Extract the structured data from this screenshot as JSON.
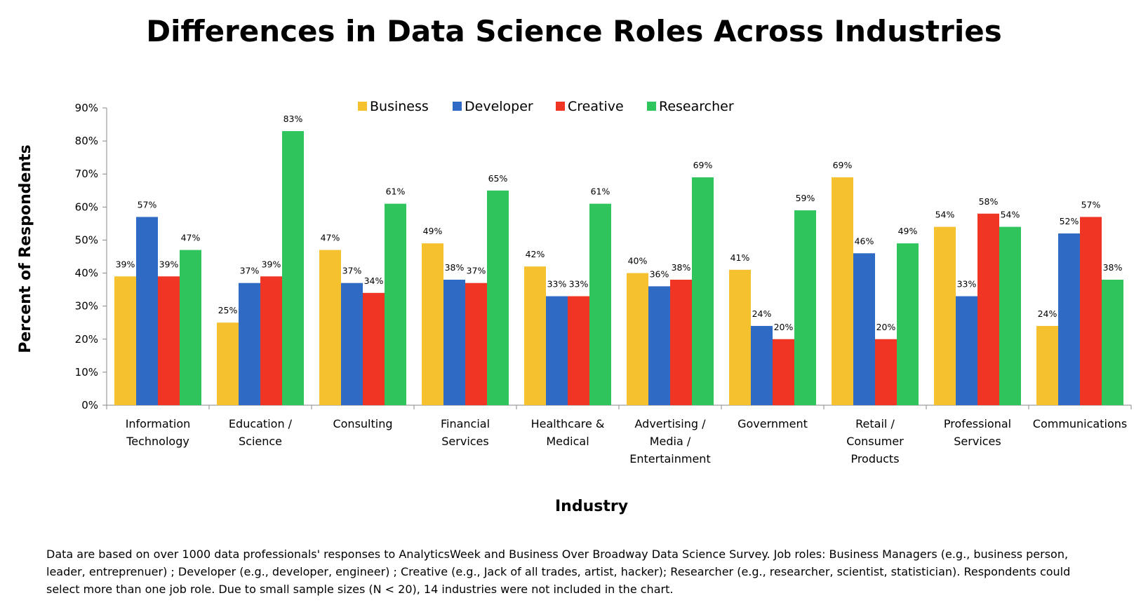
{
  "chart_data": {
    "type": "bar",
    "title": "Differences in Data Science Roles Across Industries",
    "xlabel": "Industry",
    "ylabel": "Percent of Respondents",
    "ylim": [
      0,
      90
    ],
    "yticks": [
      "0%",
      "10%",
      "20%",
      "30%",
      "40%",
      "50%",
      "60%",
      "70%",
      "80%",
      "90%"
    ],
    "legend_position": "top",
    "categories": [
      [
        "Information",
        "Technology"
      ],
      [
        "Education /",
        "Science"
      ],
      [
        "Consulting"
      ],
      [
        "Financial",
        "Services"
      ],
      [
        "Healthcare &",
        "Medical"
      ],
      [
        "Advertising /",
        "Media /",
        "Entertainment"
      ],
      [
        "Government"
      ],
      [
        "Retail /",
        "Consumer",
        "Products"
      ],
      [
        "Professional",
        "Services"
      ],
      [
        "Communications"
      ]
    ],
    "series": [
      {
        "name": "Business",
        "color": "#F6C12E",
        "values": [
          39,
          25,
          47,
          49,
          42,
          40,
          41,
          69,
          54,
          24
        ],
        "labels": [
          "39%",
          "25%",
          "47%",
          "49%",
          "42%",
          "40%",
          "41%",
          "69%",
          "54%",
          "24%"
        ]
      },
      {
        "name": "Developer",
        "color": "#2F6BC4",
        "values": [
          57,
          37,
          37,
          38,
          33,
          36,
          24,
          46,
          33,
          52
        ],
        "labels": [
          "57%",
          "37%",
          "37%",
          "38%",
          "33%",
          "36%",
          "24%",
          "46%",
          "33%",
          "52%"
        ]
      },
      {
        "name": "Creative",
        "color": "#F03524",
        "values": [
          39,
          39,
          34,
          37,
          33,
          38,
          20,
          20,
          58,
          57
        ],
        "labels": [
          "39%",
          "39%",
          "34%",
          "37%",
          "33%",
          "38%",
          "20%",
          "20%",
          "58%",
          "57%"
        ]
      },
      {
        "name": "Researcher",
        "color": "#2FC45C",
        "values": [
          47,
          83,
          61,
          65,
          61,
          69,
          59,
          49,
          54,
          38
        ],
        "labels": [
          "47%",
          "83%",
          "61%",
          "65%",
          "61%",
          "69%",
          "59%",
          "49%",
          "54%",
          "38%"
        ]
      }
    ]
  },
  "footnote": "Data are based on over 1000 data professionals' responses to AnalyticsWeek and Business Over Broadway Data Science Survey. Job roles: Business Managers (e.g., business person, leader, entreprenuer) ; Developer (e.g., developer, engineer) ; Creative (e.g., Jack of all trades, artist, hacker); Researcher (e.g., researcher, scientist, statistician). Respondents could select more than one job role. Due to small sample sizes (N < 20), 14 industries were not included in the chart."
}
